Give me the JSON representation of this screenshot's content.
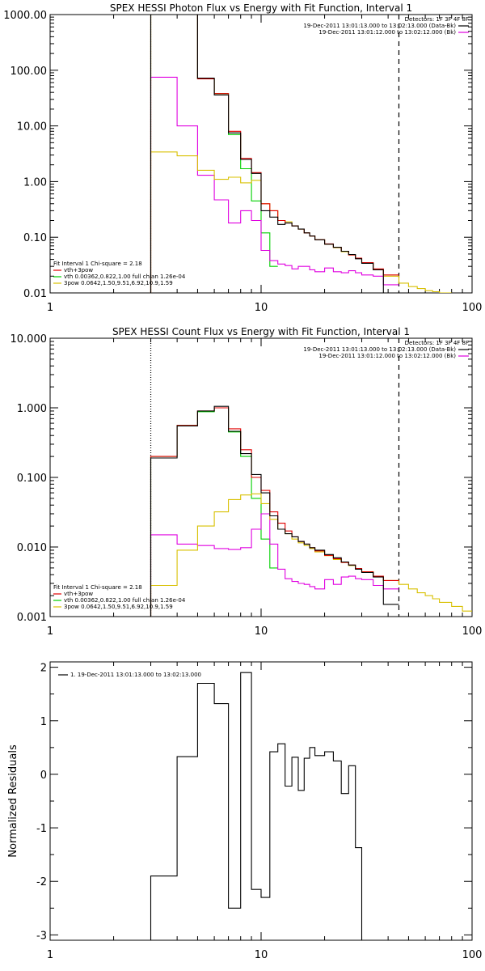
{
  "chart_data": [
    {
      "type": "line",
      "title": "SPEX HESSI Photon Flux vs Energy with Fit Function, Interval 1",
      "x_scale": "log",
      "y_scale": "log",
      "xlim": [
        1,
        100
      ],
      "ylim": [
        0.01,
        1000
      ],
      "x_ticks": [
        "1",
        "10",
        "100"
      ],
      "y_ticks": [
        "0.01",
        "0.10",
        "1.00",
        "10.00",
        "100.00",
        "1000.00"
      ],
      "x_ticks_minor": "log",
      "legend_top": {
        "header": "Detectors: 1F 3F 4F 8F",
        "lines": [
          {
            "label": "19-Dec-2011 13:01:13.000 to 13:02:13.000 (Data-Bk)",
            "color": "#000000"
          },
          {
            "label": "19-Dec-2011 13:01:12.000 to 13:02:12.000 (Bk)",
            "color": "#e000e0"
          }
        ]
      },
      "legend_bottom": {
        "header": "Fit Interval 1    Chi-square = 2.18",
        "lines": [
          {
            "label": "vth+3pow",
            "color": "#e00000"
          },
          {
            "label": "vth 0.00362,0.822,1.00   full chian 1.26e-04",
            "color": "#00d000"
          },
          {
            "label": "3pow 0.0642,1.50,9.51,6.92,10.9,1.59",
            "color": "#d8c000"
          }
        ]
      },
      "vlines": [
        {
          "x": 3,
          "color": "#ff8000",
          "style": "dotted"
        },
        {
          "x": 45,
          "color": "#000000",
          "style": "dashed"
        }
      ],
      "series": [
        {
          "color": "#00d000",
          "edges": [
            3,
            4,
            5,
            6,
            7,
            8,
            9,
            10,
            11,
            12
          ],
          "values": [
            1000,
            1000,
            70,
            38,
            7,
            1.7,
            0.45,
            0.12,
            0.03
          ]
        },
        {
          "color": "#e000e0",
          "edges": [
            3,
            4,
            5,
            6,
            7,
            8,
            9,
            10,
            11,
            12,
            13,
            14,
            15,
            16,
            17,
            18,
            20,
            22,
            24,
            26,
            28,
            30,
            34,
            38,
            45
          ],
          "values": [
            75,
            10,
            1.3,
            0.47,
            0.18,
            0.3,
            0.2,
            0.058,
            0.038,
            0.033,
            0.031,
            0.027,
            0.03,
            0.03,
            0.026,
            0.024,
            0.028,
            0.024,
            0.023,
            0.025,
            0.023,
            0.021,
            0.02,
            0.014
          ]
        },
        {
          "color": "#d8c000",
          "edges": [
            3,
            4,
            5,
            6,
            7,
            8,
            9,
            10,
            11,
            12,
            13,
            14,
            15,
            16,
            17,
            18,
            20,
            22,
            24,
            26,
            28,
            30,
            34,
            38,
            45,
            50,
            55,
            60,
            65,
            70,
            80
          ],
          "values": [
            3.4,
            2.9,
            1.6,
            1.1,
            1.2,
            0.95,
            1.05,
            0.4,
            0.3,
            0.2,
            0.19,
            0.16,
            0.14,
            0.12,
            0.105,
            0.09,
            0.075,
            0.065,
            0.055,
            0.048,
            0.042,
            0.035,
            0.026,
            0.02,
            0.015,
            0.013,
            0.012,
            0.011,
            0.0105,
            0.01
          ]
        },
        {
          "color": "#e00000",
          "edges": [
            3,
            4,
            5,
            6,
            7,
            8,
            9,
            10,
            11,
            12,
            13,
            14,
            15,
            16,
            17,
            18,
            20,
            22,
            24,
            26,
            28,
            30,
            34,
            38,
            45
          ],
          "values": [
            1000,
            1000,
            70,
            38,
            8,
            2.6,
            1.45,
            0.4,
            0.3,
            0.2,
            0.18,
            0.16,
            0.14,
            0.12,
            0.105,
            0.09,
            0.076,
            0.066,
            0.056,
            0.048,
            0.042,
            0.035,
            0.027,
            0.021
          ]
        },
        {
          "color": "#000000",
          "edges": [
            3,
            4,
            5,
            6,
            7,
            8,
            9,
            10,
            11,
            12,
            13,
            14,
            15,
            16,
            17,
            18,
            20,
            22,
            24,
            26,
            28,
            30,
            34,
            38,
            45
          ],
          "values": [
            1000,
            1000,
            72,
            36,
            7.5,
            2.5,
            1.4,
            0.3,
            0.23,
            0.17,
            0.18,
            0.16,
            0.14,
            0.12,
            0.105,
            0.09,
            0.075,
            0.066,
            0.056,
            0.049,
            0.041,
            0.034,
            0.026,
            0.01
          ]
        }
      ]
    },
    {
      "type": "line",
      "title": "SPEX HESSI Count Flux vs Energy with Fit Function, Interval 1",
      "x_scale": "log",
      "y_scale": "log",
      "xlim": [
        1,
        100
      ],
      "ylim": [
        0.001,
        10
      ],
      "x_ticks": [
        "1",
        "10",
        "100"
      ],
      "y_ticks": [
        "0.001",
        "0.010",
        "0.100",
        "1.000",
        "10.000"
      ],
      "legend_top": {
        "header": "Detectors: 1F 3F 4F 8F",
        "lines": [
          {
            "label": "19-Dec-2011 13:01:13.000 to 13:02:13.000 (Data-Bk)",
            "color": "#000000"
          },
          {
            "label": "19-Dec-2011 13:01:12.000 to 13:02:12.000 (Bk)",
            "color": "#e000e0"
          }
        ]
      },
      "legend_bottom": {
        "header": "Fit Interval 1    Chi-square = 2.18",
        "lines": [
          {
            "label": "vth+3pow",
            "color": "#e00000"
          },
          {
            "label": "vth 0.00362,0.822,1.00   full chian 1.26e-04",
            "color": "#00d000"
          },
          {
            "label": "3pow 0.0642,1.50,9.51,6.92,10.9,1.59",
            "color": "#d8c000"
          }
        ]
      },
      "vlines": [
        {
          "x": 3,
          "color": "#000000",
          "style": "dotted"
        },
        {
          "x": 45,
          "color": "#000000",
          "style": "dashed"
        }
      ],
      "series": [
        {
          "color": "#00d000",
          "edges": [
            3,
            4,
            5,
            6,
            7,
            8,
            9,
            10,
            11,
            12
          ],
          "values": [
            0.2,
            0.56,
            0.88,
            1.0,
            0.45,
            0.2,
            0.05,
            0.013,
            0.005
          ]
        },
        {
          "color": "#e000e0",
          "edges": [
            3,
            4,
            5,
            6,
            7,
            8,
            9,
            10,
            11,
            12,
            13,
            14,
            15,
            16,
            17,
            18,
            20,
            22,
            24,
            26,
            28,
            30,
            34,
            38,
            45
          ],
          "values": [
            0.015,
            0.011,
            0.0105,
            0.0095,
            0.0092,
            0.0098,
            0.018,
            0.03,
            0.011,
            0.0048,
            0.0035,
            0.0032,
            0.003,
            0.0029,
            0.0027,
            0.0025,
            0.0034,
            0.0029,
            0.0037,
            0.0038,
            0.0035,
            0.0034,
            0.0028,
            0.0025
          ]
        },
        {
          "color": "#d8c000",
          "edges": [
            3,
            4,
            5,
            6,
            7,
            8,
            9,
            10,
            11,
            12,
            13,
            14,
            15,
            16,
            17,
            18,
            20,
            22,
            24,
            26,
            28,
            30,
            34,
            38,
            45,
            50,
            55,
            60,
            65,
            70,
            80,
            90,
            100
          ],
          "values": [
            0.0028,
            0.009,
            0.02,
            0.032,
            0.048,
            0.056,
            0.058,
            0.042,
            0.025,
            0.018,
            0.0155,
            0.013,
            0.0115,
            0.0105,
            0.0095,
            0.0085,
            0.0075,
            0.0066,
            0.006,
            0.0054,
            0.0048,
            0.0044,
            0.0038,
            0.0033,
            0.0029,
            0.0025,
            0.0022,
            0.002,
            0.0018,
            0.0016,
            0.0014,
            0.0012
          ]
        },
        {
          "color": "#e00000",
          "edges": [
            3,
            4,
            5,
            6,
            7,
            8,
            9,
            10,
            11,
            12,
            13,
            14,
            15,
            16,
            17,
            18,
            20,
            22,
            24,
            26,
            28,
            30,
            34,
            38,
            45
          ],
          "values": [
            0.2,
            0.56,
            0.9,
            1.0,
            0.5,
            0.25,
            0.1,
            0.065,
            0.032,
            0.022,
            0.017,
            0.014,
            0.012,
            0.011,
            0.0098,
            0.0088,
            0.0076,
            0.0068,
            0.006,
            0.0055,
            0.0049,
            0.0044,
            0.0038,
            0.0033
          ]
        },
        {
          "color": "#000000",
          "edges": [
            3,
            4,
            5,
            6,
            7,
            8,
            9,
            10,
            11,
            12,
            13,
            14,
            15,
            16,
            17,
            18,
            20,
            22,
            24,
            26,
            28,
            30,
            34,
            38,
            45
          ],
          "values": [
            0.19,
            0.55,
            0.9,
            1.05,
            0.46,
            0.22,
            0.11,
            0.06,
            0.028,
            0.018,
            0.0155,
            0.014,
            0.012,
            0.011,
            0.0098,
            0.009,
            0.0078,
            0.007,
            0.0061,
            0.0055,
            0.0048,
            0.0043,
            0.0037,
            0.0015
          ]
        }
      ]
    },
    {
      "type": "line",
      "title": "",
      "ylabel": "Normalized Residuals",
      "x_scale": "log",
      "y_scale": "linear",
      "xlim": [
        1,
        100
      ],
      "ylim": [
        -3.1,
        2.1
      ],
      "x_ticks": [
        "1",
        "10",
        "100"
      ],
      "y_ticks": [
        "2",
        "1",
        "0",
        "-1",
        "-2",
        "-3"
      ],
      "legend_top": {
        "header": "",
        "lines": [
          {
            "label": "1. 19-Dec-2011 13:01:13.000 to 13:02:13.000",
            "color": "#000000"
          }
        ]
      },
      "series": [
        {
          "color": "#000000",
          "edges": [
            3,
            4,
            5,
            6,
            7,
            8,
            9,
            10,
            11,
            12,
            13,
            14,
            15,
            16,
            17,
            18,
            20,
            22,
            24,
            26,
            28,
            30,
            34,
            38,
            45
          ],
          "values": [
            -1.9,
            0.33,
            1.7,
            1.32,
            -2.5,
            1.9,
            -2.15,
            -2.3,
            0.42,
            0.57,
            -0.22,
            0.32,
            -0.3,
            0.3,
            0.5,
            0.35,
            0.42,
            0.25,
            -0.36,
            0.16,
            -1.37,
            -3.1,
            -3.1,
            -3.1
          ]
        }
      ]
    }
  ]
}
